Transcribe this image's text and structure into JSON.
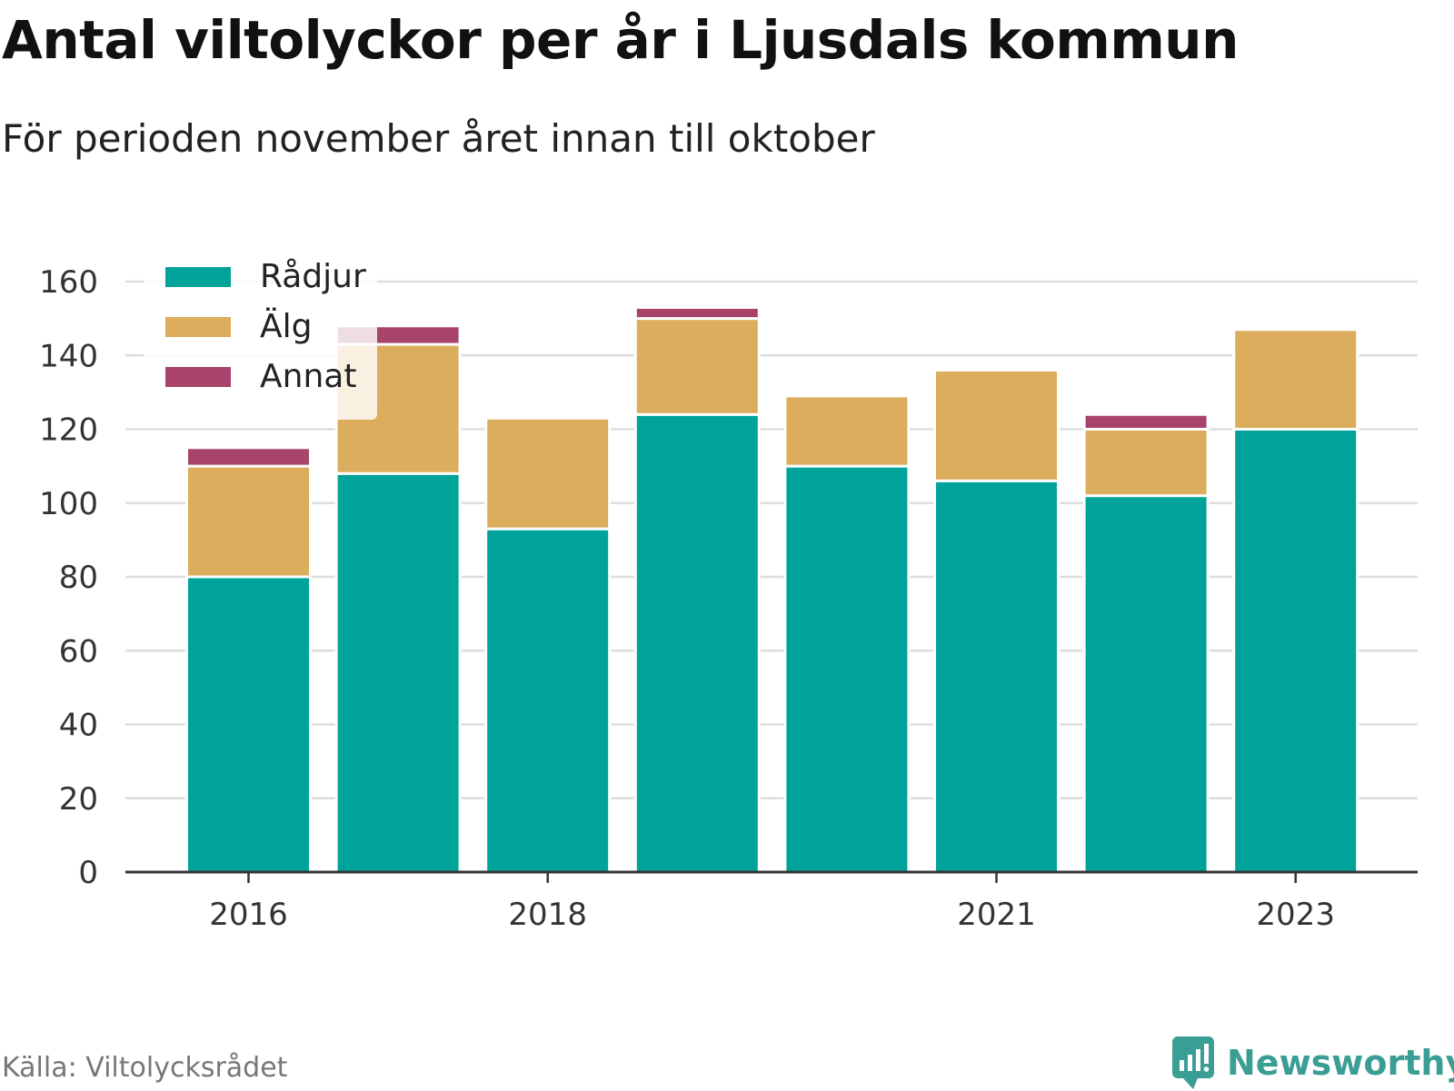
{
  "title": "Antal viltolyckor per år i Ljusdals kommun",
  "subtitle": "För perioden november året innan till oktober",
  "source": "Källa: Viltolycksrådet",
  "brand": {
    "name": "Newsworthy",
    "icon": "bar-chart-speech-bubble-icon",
    "color": "#3a9e95"
  },
  "chart_data": {
    "type": "bar",
    "stacked": true,
    "categories": [
      "2016",
      "2017",
      "2018",
      "2019",
      "2020",
      "2021",
      "2022",
      "2023"
    ],
    "x_tick_labels": [
      "2016",
      "2018",
      "2021",
      "2023"
    ],
    "series": [
      {
        "name": "Rådjur",
        "color": "#00a39a",
        "values": [
          80,
          108,
          93,
          124,
          110,
          106,
          102,
          120
        ]
      },
      {
        "name": "Älg",
        "color": "#dbad5c",
        "values": [
          30,
          35,
          30,
          26,
          19,
          30,
          18,
          27
        ]
      },
      {
        "name": "Annat",
        "color": "#a8436b",
        "values": [
          5,
          5,
          0,
          3,
          0,
          0,
          4,
          0
        ]
      }
    ],
    "ylim": [
      0,
      160
    ],
    "yticks": [
      0,
      20,
      40,
      60,
      80,
      100,
      120,
      140,
      160
    ],
    "grid": true,
    "legend_position": "top-left"
  }
}
